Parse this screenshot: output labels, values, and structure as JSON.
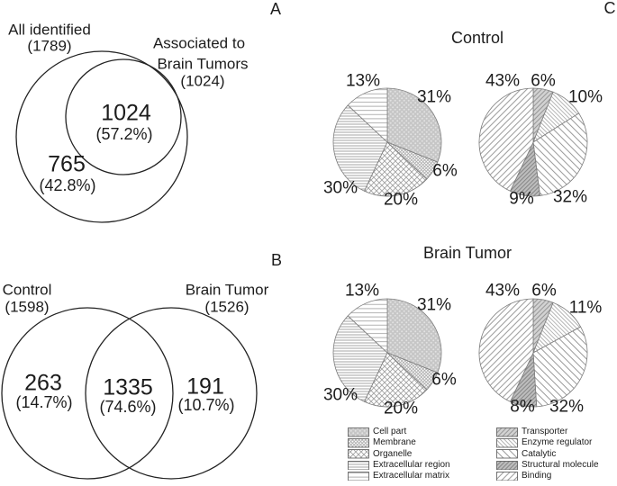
{
  "panel_labels": {
    "a": "A",
    "b": "B",
    "c": "C"
  },
  "venn_a": {
    "set1": {
      "label": "All identified",
      "count": "(1789)"
    },
    "set2": {
      "line1": "Associated to",
      "line2": "Brain Tumors",
      "count": "(1024)"
    },
    "overlap": {
      "value": "1024",
      "pct": "(57.2%)"
    },
    "only_set1": {
      "value": "765",
      "pct": "(42.8%)"
    }
  },
  "venn_b": {
    "set1": {
      "label": "Control",
      "count": "(1598)"
    },
    "set2": {
      "label": "Brain Tumor",
      "count": "(1526)"
    },
    "only_set1": {
      "value": "263",
      "pct": "(14.7%)"
    },
    "overlap": {
      "value": "1335",
      "pct": "(74.6%)"
    },
    "only_set2": {
      "value": "191",
      "pct": "(10.7%)"
    }
  },
  "pie_section": {
    "control_title": "Control",
    "tumor_title": "Brain Tumor"
  },
  "legend_left": {
    "items": [
      {
        "label": "Cell part",
        "pattern": "p-cell-part"
      },
      {
        "label": "Membrane",
        "pattern": "p-membrane"
      },
      {
        "label": "Organelle",
        "pattern": "p-organelle"
      },
      {
        "label": "Extracellular region",
        "pattern": "p-extracellular-region"
      },
      {
        "label": "Extracellular matrix",
        "pattern": "p-extracellular-matrix"
      }
    ]
  },
  "legend_right": {
    "items": [
      {
        "label": "Transporter",
        "pattern": "p-transporter"
      },
      {
        "label": "Enzyme regulator",
        "pattern": "p-enzyme-regulator"
      },
      {
        "label": "Catalytic",
        "pattern": "p-catalytic"
      },
      {
        "label": "Structural molecule",
        "pattern": "p-structural-molecule"
      },
      {
        "label": "Binding",
        "pattern": "p-binding"
      }
    ]
  },
  "chart_data": [
    {
      "type": "venn",
      "panel": "A",
      "layout": "subset",
      "sets": [
        {
          "label": "All identified",
          "size": 1789
        },
        {
          "label": "Associated to Brain Tumors",
          "size": 1024
        }
      ],
      "regions": [
        {
          "label": "All identified only",
          "value": 765,
          "pct": 42.8
        },
        {
          "label": "Intersection",
          "value": 1024,
          "pct": 57.2
        }
      ]
    },
    {
      "type": "venn",
      "panel": "B",
      "layout": "overlap",
      "sets": [
        {
          "label": "Control",
          "size": 1598
        },
        {
          "label": "Brain Tumor",
          "size": 1526
        }
      ],
      "regions": [
        {
          "label": "Control only",
          "value": 263,
          "pct": 14.7
        },
        {
          "label": "Intersection",
          "value": 1335,
          "pct": 74.6
        },
        {
          "label": "Brain Tumor only",
          "value": 191,
          "pct": 10.7
        }
      ]
    },
    {
      "type": "pie",
      "panel": "C",
      "title": "Control",
      "position": "left",
      "start_angle_deg": 0,
      "direction": "clockwise",
      "categories": [
        "Cell part",
        "Membrane",
        "Organelle",
        "Extracellular region",
        "Extracellular matrix"
      ],
      "values": [
        31,
        6,
        20,
        30,
        13
      ],
      "slice_labels": [
        "31%",
        "6%",
        "20%",
        "30%",
        "13%"
      ],
      "patterns": [
        "p-cell-part",
        "p-membrane",
        "p-organelle",
        "p-extracellular-region",
        "p-extracellular-matrix"
      ]
    },
    {
      "type": "pie",
      "panel": "C",
      "title": "Control",
      "position": "right",
      "start_angle_deg": 0,
      "direction": "clockwise",
      "categories": [
        "Transporter",
        "Enzyme regulator",
        "Catalytic",
        "Structural molecule",
        "Binding"
      ],
      "values": [
        6,
        10,
        32,
        9,
        43
      ],
      "slice_labels": [
        "6%",
        "10%",
        "32%",
        "9%",
        "43%"
      ],
      "patterns": [
        "p-transporter",
        "p-enzyme-regulator",
        "p-catalytic",
        "p-structural-molecule",
        "p-binding"
      ]
    },
    {
      "type": "pie",
      "panel": "C",
      "title": "Brain Tumor",
      "position": "left",
      "start_angle_deg": 0,
      "direction": "clockwise",
      "categories": [
        "Cell part",
        "Membrane",
        "Organelle",
        "Extracellular region",
        "Extracellular matrix"
      ],
      "values": [
        31,
        6,
        20,
        30,
        13
      ],
      "slice_labels": [
        "31%",
        "6%",
        "20%",
        "30%",
        "13%"
      ],
      "patterns": [
        "p-cell-part",
        "p-membrane",
        "p-organelle",
        "p-extracellular-region",
        "p-extracellular-matrix"
      ]
    },
    {
      "type": "pie",
      "panel": "C",
      "title": "Brain Tumor",
      "position": "right",
      "start_angle_deg": 0,
      "direction": "clockwise",
      "categories": [
        "Transporter",
        "Enzyme regulator",
        "Catalytic",
        "Structural molecule",
        "Binding"
      ],
      "values": [
        6,
        11,
        32,
        8,
        43
      ],
      "slice_labels": [
        "6%",
        "11%",
        "32%",
        "8%",
        "43%"
      ],
      "patterns": [
        "p-transporter",
        "p-enzyme-regulator",
        "p-catalytic",
        "p-structural-molecule",
        "p-binding"
      ]
    }
  ]
}
